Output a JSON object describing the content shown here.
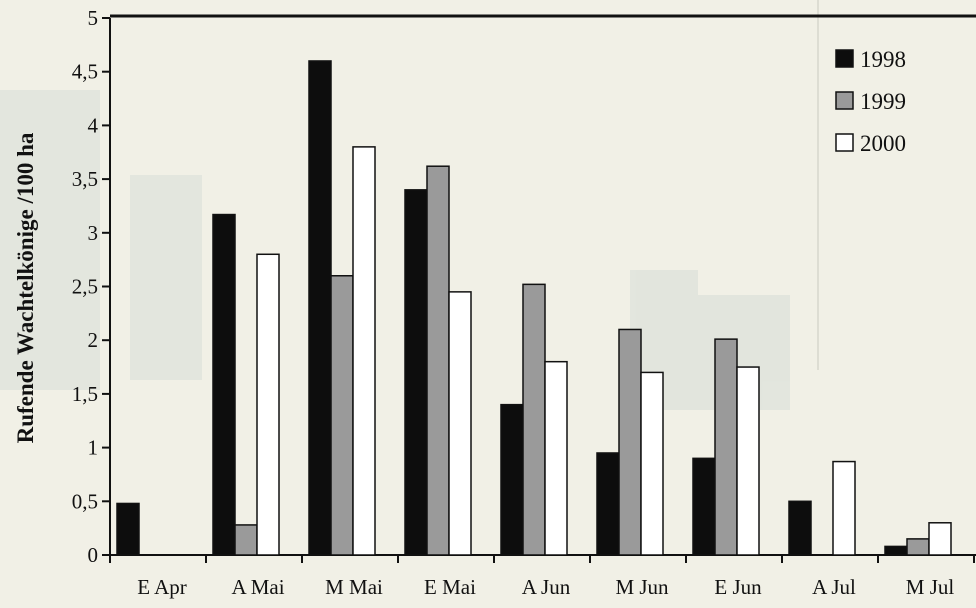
{
  "chart_data": {
    "type": "bar",
    "ylabel": "Rufende Wachtelkönige /100 ha",
    "xlabel": "",
    "ylim": [
      0,
      5
    ],
    "yticks": [
      {
        "value": 0,
        "label": "0"
      },
      {
        "value": 0.5,
        "label": "0,5"
      },
      {
        "value": 1,
        "label": "1"
      },
      {
        "value": 1.5,
        "label": "1,5"
      },
      {
        "value": 2,
        "label": "2"
      },
      {
        "value": 2.5,
        "label": "2,5"
      },
      {
        "value": 3,
        "label": "3"
      },
      {
        "value": 3.5,
        "label": "3,5"
      },
      {
        "value": 4,
        "label": "4"
      },
      {
        "value": 4.5,
        "label": "4,5"
      },
      {
        "value": 5,
        "label": "5"
      }
    ],
    "categories": [
      "E Apr",
      "A Mai",
      "M Mai",
      "E Mai",
      "A Jun",
      "M Jun",
      "E Jun",
      "A Jul",
      "M Jul"
    ],
    "series": [
      {
        "name": "1998",
        "color": "#0d0d0d",
        "values": [
          0.48,
          3.17,
          4.6,
          3.4,
          1.4,
          0.95,
          0.9,
          0.5,
          0.08
        ]
      },
      {
        "name": "1999",
        "color": "#9a9a9a",
        "values": [
          0,
          0.28,
          2.6,
          3.62,
          2.52,
          2.1,
          2.01,
          0,
          0.15
        ]
      },
      {
        "name": "2000",
        "color": "#ffffff",
        "values": [
          0,
          2.8,
          3.8,
          2.45,
          1.8,
          1.7,
          1.75,
          0.87,
          0.3
        ]
      }
    ],
    "legend_position": "top-right",
    "grid": false
  }
}
